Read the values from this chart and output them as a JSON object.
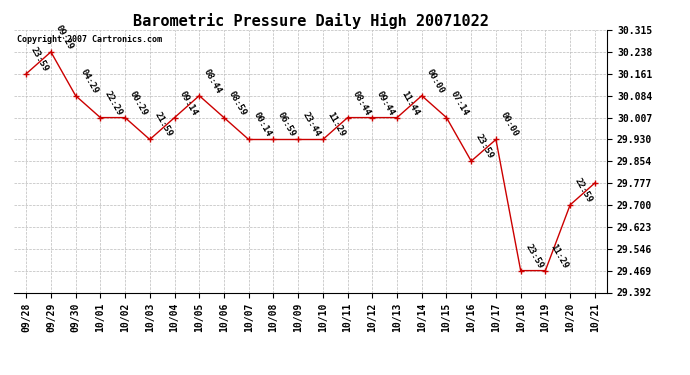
{
  "title": "Barometric Pressure Daily High 20071022",
  "copyright": "Copyright 2007 Cartronics.com",
  "x_labels": [
    "09/28",
    "09/29",
    "09/30",
    "10/01",
    "10/02",
    "10/03",
    "10/04",
    "10/05",
    "10/06",
    "10/07",
    "10/08",
    "10/09",
    "10/10",
    "10/11",
    "10/12",
    "10/13",
    "10/14",
    "10/15",
    "10/16",
    "10/17",
    "10/18",
    "10/19",
    "10/20",
    "10/21"
  ],
  "y_values": [
    30.161,
    30.238,
    30.084,
    30.007,
    30.007,
    29.93,
    30.007,
    30.084,
    30.007,
    29.93,
    29.93,
    29.93,
    29.93,
    30.007,
    30.007,
    30.007,
    30.084,
    30.007,
    29.854,
    29.93,
    29.469,
    29.469,
    29.7,
    29.777
  ],
  "point_labels": [
    "23:59",
    "09:29",
    "04:29",
    "22:29",
    "00:29",
    "21:59",
    "09:14",
    "08:44",
    "08:59",
    "00:14",
    "06:59",
    "23:44",
    "11:29",
    "08:44",
    "09:44",
    "11:44",
    "00:00",
    "07:14",
    "23:59",
    "00:00",
    "23:59",
    "11:29",
    "22:59",
    ""
  ],
  "y_ticks": [
    29.392,
    29.469,
    29.546,
    29.623,
    29.7,
    29.777,
    29.854,
    29.93,
    30.007,
    30.084,
    30.161,
    30.238,
    30.315
  ],
  "y_min": 29.392,
  "y_max": 30.315,
  "line_color": "#cc0000",
  "marker_color": "#cc0000",
  "bg_color": "#ffffff",
  "grid_color": "#bbbbbb",
  "title_fontsize": 11,
  "label_fontsize": 7,
  "annot_fontsize": 6.5
}
